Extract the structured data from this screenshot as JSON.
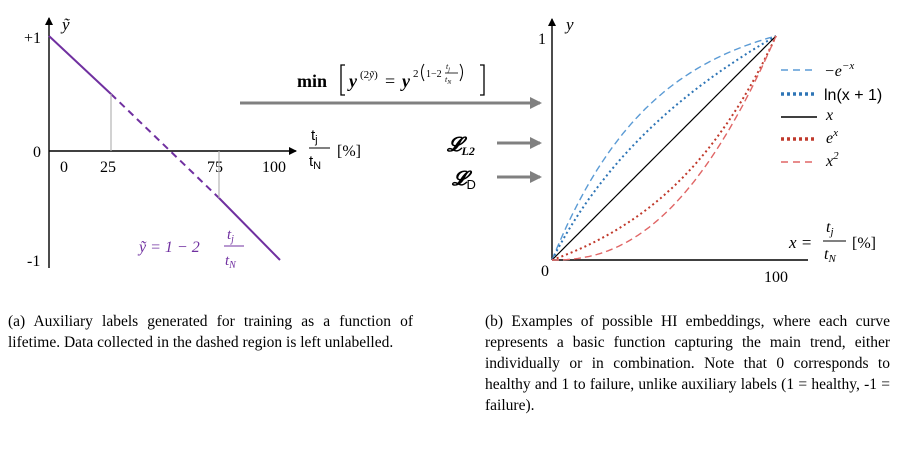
{
  "panel_a": {
    "y_axis_label": "ỹ",
    "y_ticks": [
      "+1",
      "0",
      "-1"
    ],
    "x_ticks": [
      "0",
      "25",
      "75",
      "100"
    ],
    "x_axis_label_num": "t",
    "x_axis_label_num_sub": "j",
    "x_axis_label_den": "t",
    "x_axis_label_den_sub": "N",
    "x_axis_unit": "[%]",
    "equation_lhs": "ỹ = 1 − 2",
    "equation_num": "t",
    "equation_num_sub": "j",
    "equation_den": "t",
    "equation_den_sub": "N",
    "line_color": "#7030a0"
  },
  "middle": {
    "min_label": "min",
    "loss_l2": "𝓛",
    "loss_l2_sub": "L2",
    "loss_d": "𝓛",
    "loss_d_sub": "D"
  },
  "panel_b": {
    "y_axis_label": "y",
    "y_tick": "1",
    "origin": "0",
    "x_tick": "100",
    "x_label_lhs": "x =",
    "x_label_num": "t",
    "x_label_num_sub": "j",
    "x_label_den": "t",
    "x_label_den_sub": "N",
    "x_label_unit": "[%]",
    "legend": [
      {
        "label": "−e",
        "sup": "−x",
        "color": "#5b9bd5",
        "style": "dash"
      },
      {
        "label": "ln(x + 1)",
        "sup": "",
        "color": "#2e75b6",
        "style": "dot"
      },
      {
        "label": "x",
        "sup": "",
        "color": "#000000",
        "style": "solid"
      },
      {
        "label": "e",
        "sup": "x",
        "color": "#c0392b",
        "style": "dot"
      },
      {
        "label": "x",
        "sup": "2",
        "color": "#e06666",
        "style": "dash"
      }
    ]
  },
  "captions": {
    "a": "(a) Auxiliary labels generated for training as a function of lifetime. Data collected in the dashed region is left unlabelled.",
    "b": "(b) Examples of possible HI embeddings, where each curve represents a basic function capturing the main trend, either individually or in combination. Note that 0 corresponds to healthy and 1 to failure, unlike auxiliary labels (1 = healthy, -1 = failure)."
  }
}
